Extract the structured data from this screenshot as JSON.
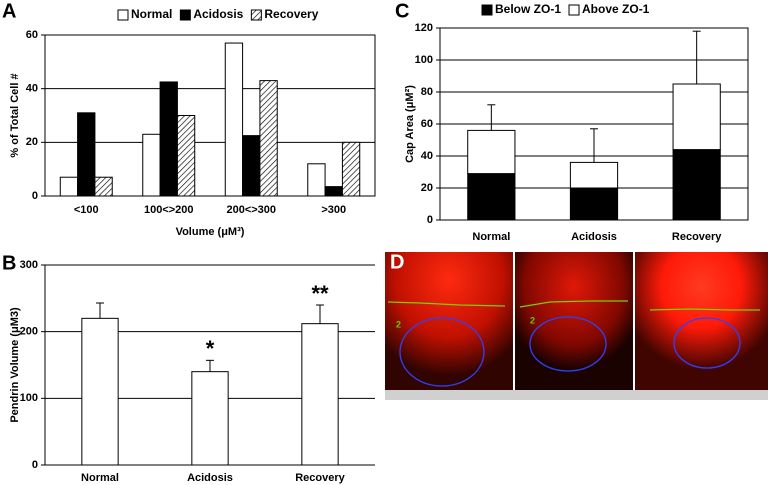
{
  "chart_data": [
    {
      "type": "bar",
      "panel": "A",
      "categories": [
        "<100",
        "100<>200",
        "200<>300",
        ">300"
      ],
      "series": [
        {
          "name": "Normal",
          "color": "#ffffff",
          "values": [
            7,
            23,
            57,
            12
          ]
        },
        {
          "name": "Acidosis",
          "color": "#000000",
          "values": [
            31,
            42.5,
            22.5,
            3.5
          ]
        },
        {
          "name": "Recovery",
          "color": "#ffffff",
          "hatch": true,
          "values": [
            7,
            30,
            43,
            20
          ]
        }
      ],
      "ylim": [
        0,
        60
      ],
      "yticks": [
        0,
        20,
        40,
        60
      ],
      "grid": true,
      "frame": true,
      "ylabel": "% of Total Cell #",
      "xlabel": "Volume (μM³)",
      "legend": "top"
    },
    {
      "type": "bar",
      "panel": "B",
      "categories": [
        "Normal",
        "Acidosis",
        "Recovery"
      ],
      "values": [
        220,
        140,
        212
      ],
      "errors": [
        23,
        17,
        28
      ],
      "value_annotations": [
        null,
        "*",
        "**"
      ],
      "color": "#ffffff",
      "ylim": [
        0,
        300
      ],
      "yticks": [
        0,
        100,
        200,
        300
      ],
      "grid": true,
      "frame": false,
      "ylabel": "Pendrin Volume (μM3)"
    },
    {
      "type": "stacked_bar",
      "panel": "C",
      "categories": [
        "Normal",
        "Acidosis",
        "Recovery"
      ],
      "series": [
        {
          "name": "Below ZO-1",
          "color": "#000000",
          "values": [
            29,
            20,
            44
          ]
        },
        {
          "name": "Above ZO-1",
          "color": "#ffffff",
          "values": [
            27,
            16,
            41
          ],
          "errors": [
            16,
            21,
            33
          ]
        }
      ],
      "ylim": [
        0,
        120
      ],
      "yticks": [
        0,
        20,
        40,
        60,
        80,
        100,
        120
      ],
      "grid": true,
      "frame": true,
      "ylabel": "Cap Area (μM²)",
      "legend": "top"
    }
  ],
  "image_panel": {
    "panel": "D",
    "labels": [
      "2",
      "2"
    ]
  }
}
